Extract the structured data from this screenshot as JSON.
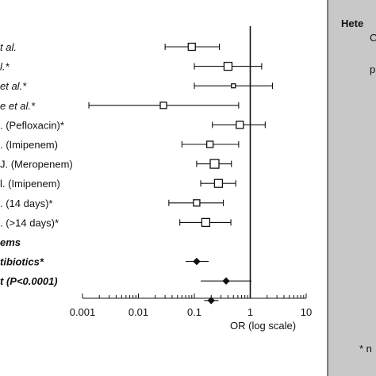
{
  "chart_data": {
    "type": "forest",
    "xscale": "log",
    "xlim": [
      0.001,
      10
    ],
    "xlabel": "OR (log scale)",
    "xticks": [
      "0.001",
      "0.01",
      "0.1",
      "1",
      "10"
    ],
    "reference_line": 1,
    "rows": [
      {
        "label": "t al.",
        "or": 0.09,
        "lo": 0.03,
        "hi": 0.28,
        "marker": "square",
        "size": 9,
        "style": "italic"
      },
      {
        "label": "l.*",
        "or": 0.4,
        "lo": 0.1,
        "hi": 1.6,
        "marker": "square",
        "size": 10,
        "style": "italic"
      },
      {
        "label": "et al.*",
        "or": 0.5,
        "lo": 0.1,
        "hi": 2.5,
        "marker": "square",
        "size": 5,
        "style": "italic"
      },
      {
        "label": "e et al.*",
        "or": 0.028,
        "lo": 0.0013,
        "hi": 0.62,
        "marker": "square",
        "size": 8,
        "style": "italic"
      },
      {
        "label": ". (Pefloxacin)*",
        "or": 0.65,
        "lo": 0.21,
        "hi": 1.85,
        "marker": "square",
        "size": 9,
        "style": "normal"
      },
      {
        "label": ". (Imipenem)",
        "or": 0.19,
        "lo": 0.06,
        "hi": 0.62,
        "marker": "square",
        "size": 8,
        "style": "normal"
      },
      {
        "label": "J. (Meropenem)",
        "or": 0.23,
        "lo": 0.11,
        "hi": 0.46,
        "marker": "square",
        "size": 11,
        "style": "normal"
      },
      {
        "label": "l. (Imipenem)",
        "or": 0.27,
        "lo": 0.13,
        "hi": 0.55,
        "marker": "square",
        "size": 10,
        "style": "normal"
      },
      {
        "label": ". (14 days)*",
        "or": 0.11,
        "lo": 0.035,
        "hi": 0.33,
        "marker": "square",
        "size": 8,
        "style": "normal"
      },
      {
        "label": ". (>14 days)*",
        "or": 0.16,
        "lo": 0.055,
        "hi": 0.45,
        "marker": "square",
        "size": 10,
        "style": "normal"
      },
      {
        "label": "ems",
        "or": null,
        "lo": null,
        "hi": null,
        "marker": "none",
        "size": 0,
        "style": "bold-italic"
      },
      {
        "label": "tibiotics*",
        "or": 0.11,
        "lo": 0.07,
        "hi": 0.18,
        "marker": "diamond",
        "size": 6,
        "style": "bold-italic"
      },
      {
        "label": "t (P<0.0001)",
        "or": 0.37,
        "lo": 0.13,
        "hi": 1.05,
        "marker": "diamond",
        "size": 6,
        "style": "bold-italic"
      },
      {
        "label": "",
        "or": 0.2,
        "lo": 0.15,
        "hi": 0.27,
        "marker": "diamond",
        "size": 6,
        "style": "normal"
      }
    ]
  },
  "side_panel": {
    "title": "Hete",
    "line1": "C",
    "line2": "p",
    "footnote": "* n"
  },
  "colors": {
    "panel_bg": "#c8c8c8",
    "ink": "#111111"
  }
}
